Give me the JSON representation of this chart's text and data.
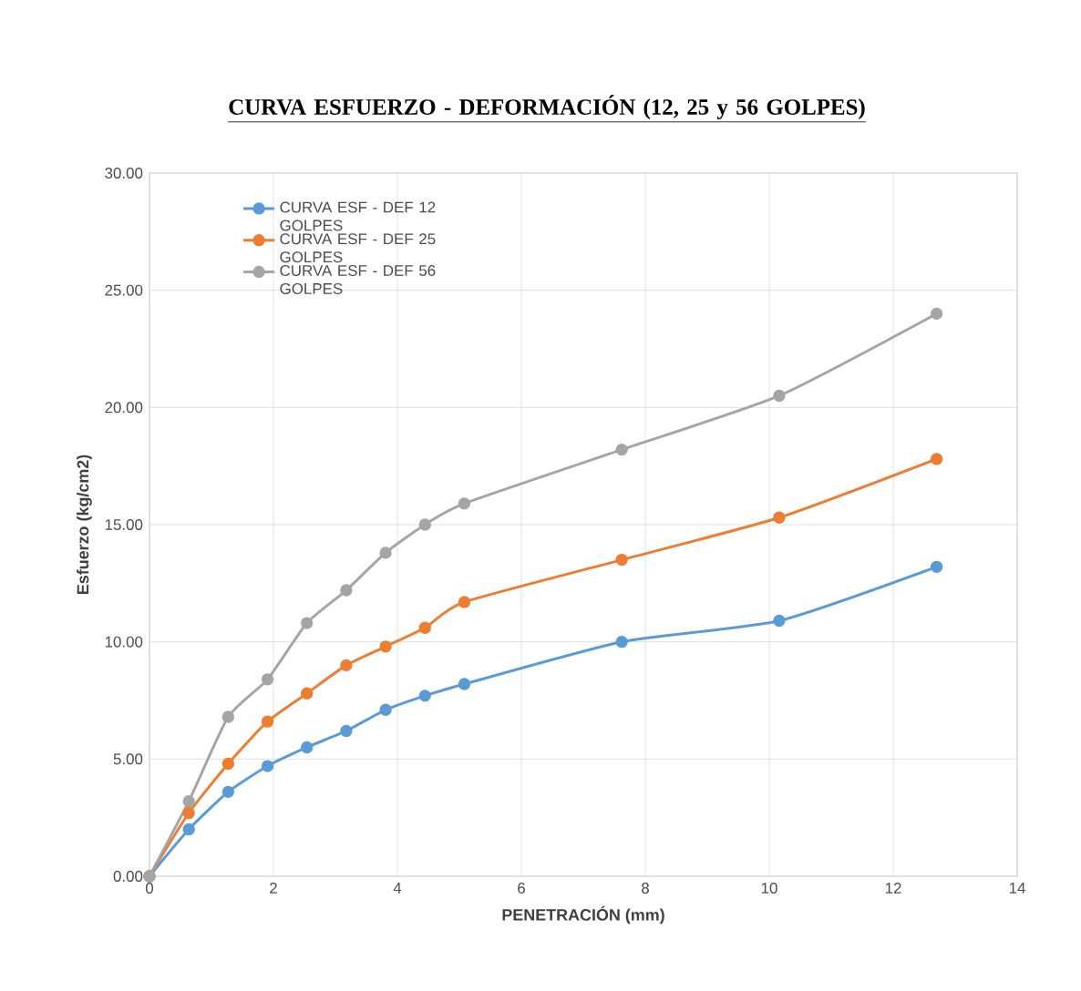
{
  "chart_data": {
    "type": "line",
    "title": "CURVA ESFUERZO - DEFORMACIÓN (12, 25 y 56 GOLPES)",
    "xlabel": "PENETRACIÓN (mm)",
    "ylabel": "Esfuerzo (kg/cm2)",
    "x": [
      0,
      0.635,
      1.27,
      1.905,
      2.54,
      3.175,
      3.81,
      4.445,
      5.08,
      7.62,
      10.16,
      12.7
    ],
    "series": [
      {
        "name": "CURVA ESF - DEF 12 GOLPES",
        "color": "#5b9bd5",
        "values": [
          0,
          2.0,
          3.6,
          4.7,
          5.5,
          6.2,
          7.1,
          7.7,
          8.2,
          10.0,
          10.9,
          13.2
        ]
      },
      {
        "name": "CURVA ESF - DEF 25 GOLPES",
        "color": "#ed7d31",
        "values": [
          0,
          2.7,
          4.8,
          6.6,
          7.8,
          9.0,
          9.8,
          10.6,
          11.7,
          13.5,
          15.3,
          17.8
        ]
      },
      {
        "name": "CURVA ESF - DEF 56 GOLPES",
        "color": "#a5a5a5",
        "values": [
          0,
          3.2,
          6.8,
          8.4,
          10.8,
          12.2,
          13.8,
          15.0,
          15.9,
          18.2,
          20.5,
          24.0
        ]
      }
    ],
    "xlim": [
      0,
      14
    ],
    "xticks": [
      0,
      2,
      4,
      6,
      8,
      10,
      12,
      14
    ],
    "ylim": [
      0,
      30
    ],
    "yticks": [
      {
        "value": 0,
        "label": "0.00"
      },
      {
        "value": 5,
        "label": "5.00"
      },
      {
        "value": 10,
        "label": "10.00"
      },
      {
        "value": 15,
        "label": "15.00"
      },
      {
        "value": 20,
        "label": "20.00"
      },
      {
        "value": 25,
        "label": "25.00"
      },
      {
        "value": 30,
        "label": "30.00"
      }
    ],
    "grid": true,
    "legend": "top left",
    "marker": "circle",
    "line_style": "solid"
  }
}
